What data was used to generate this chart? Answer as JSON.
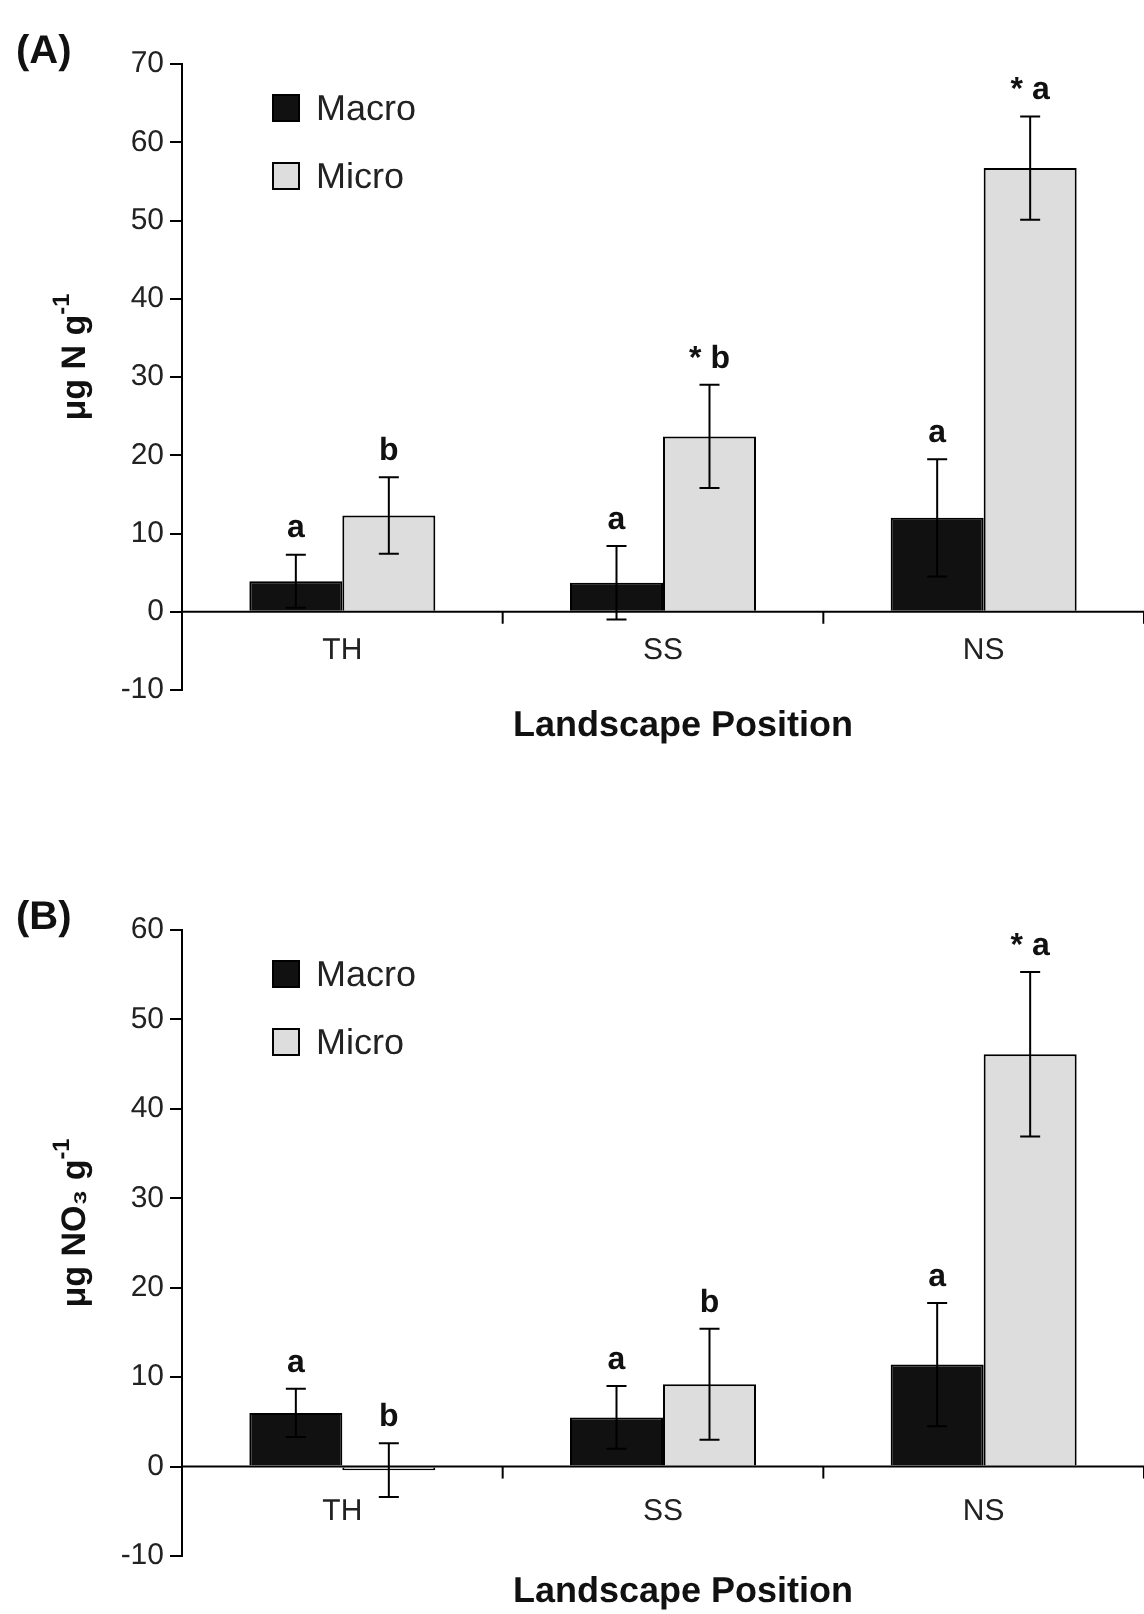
{
  "chart_data": [
    {
      "type": "bar",
      "title": "(A)",
      "xlabel": "Landscape Position",
      "ylabel": "μg N g$^{-1}$",
      "categories": [
        "TH",
        "SS",
        "NS"
      ],
      "ylim": [
        -10,
        70
      ],
      "yticks": [
        -10,
        0,
        10,
        20,
        30,
        40,
        50,
        60,
        70
      ],
      "grid": false,
      "legend": "top left",
      "series": [
        {
          "name": "Macro",
          "color": "#111111",
          "values": [
            3.9,
            3.7,
            12.0
          ],
          "errors": [
            3.4,
            4.7,
            7.5
          ],
          "value_labels": [
            "a",
            "a",
            "a"
          ]
        },
        {
          "name": "Micro",
          "color": "#dddddd",
          "values": [
            12.3,
            22.4,
            56.7
          ],
          "errors": [
            4.9,
            6.6,
            6.6
          ],
          "value_labels": [
            "b",
            "* b",
            "* a"
          ]
        }
      ]
    },
    {
      "type": "bar",
      "title": "(B)",
      "xlabel": "Landscape Position",
      "ylabel": "μg NO₃ g$^{-1}$",
      "categories": [
        "TH",
        "SS",
        "NS"
      ],
      "ylim": [
        -10,
        60
      ],
      "yticks": [
        -10,
        0,
        10,
        20,
        30,
        40,
        50,
        60
      ],
      "grid": false,
      "legend": "top left",
      "series": [
        {
          "name": "Macro",
          "color": "#111111",
          "values": [
            6.0,
            5.5,
            11.4
          ],
          "errors": [
            2.7,
            3.5,
            6.9
          ],
          "value_labels": [
            "a",
            "a",
            "a"
          ]
        },
        {
          "name": "Micro",
          "color": "#dddddd",
          "values": [
            -0.4,
            9.2,
            46.1
          ],
          "errors": [
            3.0,
            6.2,
            9.2
          ],
          "value_labels": [
            "b",
            "b",
            "* a"
          ]
        }
      ]
    }
  ]
}
